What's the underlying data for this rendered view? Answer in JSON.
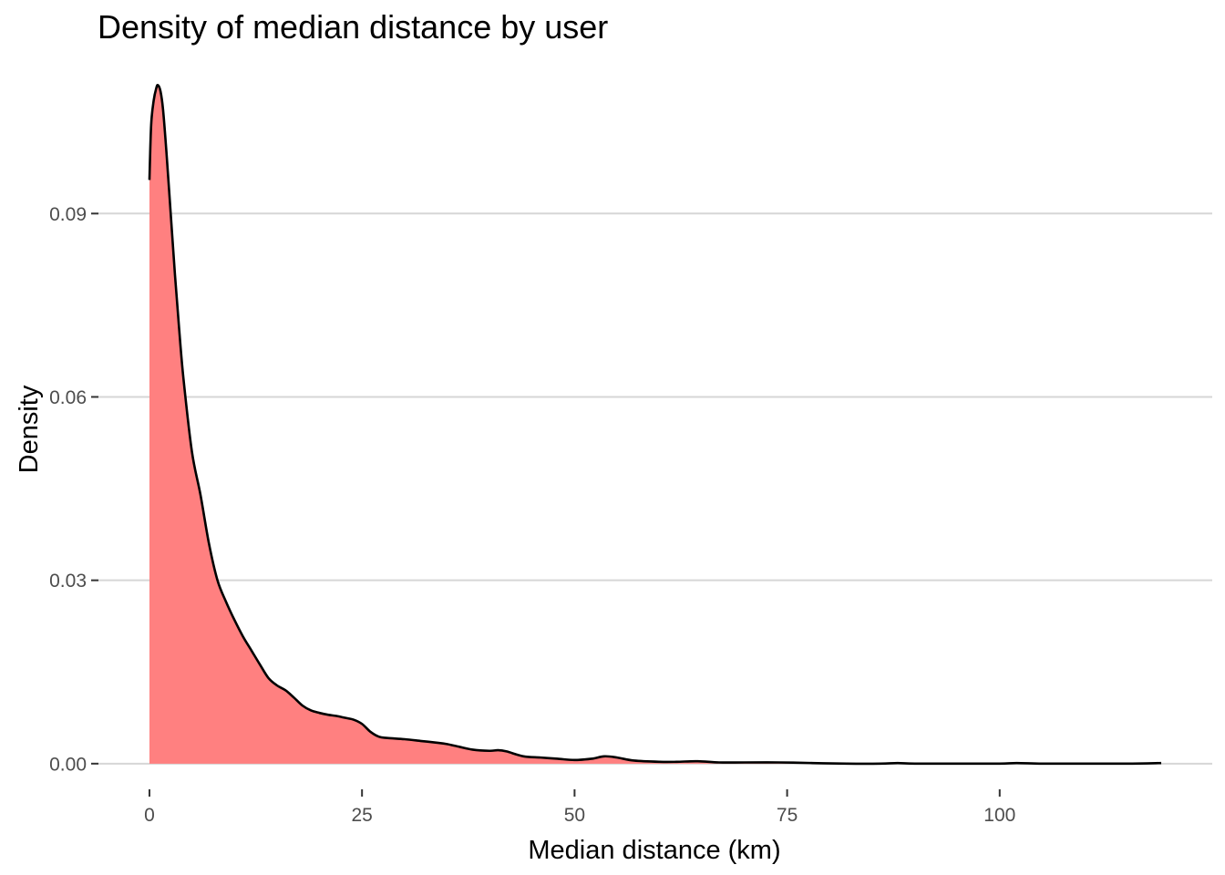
{
  "chart_data": {
    "type": "area",
    "title": "Density of median distance by user",
    "xlabel": "Median distance (km)",
    "ylabel": "Density",
    "xlim": [
      -6,
      125
    ],
    "ylim": [
      -0.0042,
      0.1145
    ],
    "x_ticks": [
      0,
      25,
      50,
      75,
      100
    ],
    "x_tick_labels": [
      "0",
      "25",
      "50",
      "75",
      "100"
    ],
    "y_ticks": [
      0.0,
      0.03,
      0.06,
      0.09
    ],
    "y_tick_labels": [
      "0.00",
      "0.03",
      "0.06",
      "0.09"
    ],
    "grid": {
      "horizontal": true,
      "vertical": false
    },
    "legend": "none",
    "fill_color": "#ff8080",
    "line_color": "#000000",
    "series": [
      {
        "x": [
          0,
          0.2,
          0.5,
          0.8,
          1.0,
          1.3,
          1.6,
          2.0,
          2.5,
          3.0,
          3.5,
          4.0,
          5.0,
          6.0,
          7.0,
          8.0,
          9.0,
          10.0,
          11.0,
          12.0,
          13.0,
          14.0,
          15.0,
          16.0,
          17.0,
          18.0,
          19.0,
          20.0,
          21.0,
          22.0,
          23.0,
          24.0,
          25.0,
          26.0,
          27.0,
          28.0,
          30.0,
          32.0,
          34.0,
          35.0,
          36.0,
          38.0,
          40.0,
          41.0,
          42.0,
          44.0,
          46.0,
          48.0,
          50.0,
          52.0,
          53.5,
          55.0,
          57.0,
          60.0,
          62.0,
          64.5,
          67.0,
          70.0,
          74.0,
          78.0,
          82.0,
          86.0,
          88.0,
          90.0,
          95.0,
          100.0,
          102.0,
          105.0,
          110.0,
          115.0,
          119.0
        ],
        "y": [
          0.0955,
          0.1045,
          0.1085,
          0.1105,
          0.111,
          0.11,
          0.107,
          0.1,
          0.09,
          0.08,
          0.071,
          0.063,
          0.051,
          0.044,
          0.036,
          0.03,
          0.0265,
          0.0235,
          0.0208,
          0.0185,
          0.0162,
          0.014,
          0.0128,
          0.012,
          0.0108,
          0.0095,
          0.0087,
          0.0083,
          0.008,
          0.0078,
          0.0075,
          0.0072,
          0.0065,
          0.0052,
          0.0044,
          0.0042,
          0.004,
          0.0037,
          0.0034,
          0.0032,
          0.0029,
          0.0023,
          0.0021,
          0.0022,
          0.002,
          0.0012,
          0.001,
          0.0008,
          0.0006,
          0.0008,
          0.0012,
          0.001,
          0.0005,
          0.0003,
          0.0003,
          0.0004,
          0.0002,
          0.0002,
          0.0002,
          0.0001,
          0.0,
          0.0,
          0.0001,
          0.0,
          0.0,
          0.0,
          0.0001,
          0.0,
          0.0,
          0.0,
          0.0001
        ]
      }
    ]
  }
}
